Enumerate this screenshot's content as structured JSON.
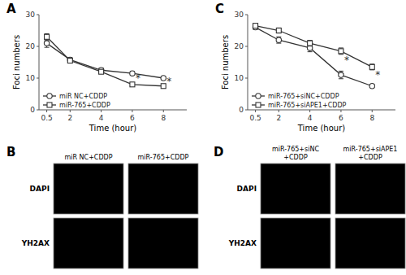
{
  "chart_data": [
    {
      "type": "line",
      "title": "A",
      "x_label": "Time (hour)",
      "y_label": "Foci numbers",
      "x": [
        0.5,
        2,
        4,
        6,
        8
      ],
      "series": [
        {
          "name": "miR NC+CDDP",
          "color": "#333333",
          "marker": "circle",
          "values": [
            21.0,
            15.8,
            12.5,
            11.5,
            10.0
          ],
          "errors": [
            1.3,
            0.7,
            0.7,
            0.6,
            0.5
          ]
        },
        {
          "name": "miR-765+CDDP",
          "color": "#333333",
          "marker": "square",
          "values": [
            23.0,
            15.5,
            12.0,
            8.0,
            7.5
          ],
          "errors": [
            1.0,
            0.6,
            0.5,
            0.4,
            0.4
          ]
        }
      ],
      "annotations": [
        {
          "text": "*",
          "x": 6,
          "y": 10.25
        },
        {
          "text": "*",
          "x": 8,
          "y": 9.2
        }
      ],
      "xlim": [
        0,
        9.5
      ],
      "xticks": [
        0.5,
        2,
        4,
        6,
        8
      ],
      "ylim": [
        0,
        30
      ],
      "yticks": [
        0,
        10,
        20,
        30
      ],
      "grid": false,
      "legend": "lower left"
    },
    {
      "type": "line",
      "title": "C",
      "x_label": "Time (hour)",
      "y_label": "Foci numbers",
      "x": [
        0.5,
        2,
        4,
        6,
        8
      ],
      "series": [
        {
          "name": "miR-765+siNC+CDDP",
          "color": "#333333",
          "marker": "circle",
          "values": [
            26.0,
            22.0,
            19.5,
            11.0,
            7.5
          ],
          "errors": [
            0.7,
            1.0,
            1.2,
            1.2,
            0.5
          ]
        },
        {
          "name": "miR-765+siAPE1+CDDP",
          "color": "#333333",
          "marker": "square",
          "values": [
            26.5,
            25.0,
            21.0,
            18.5,
            13.5
          ],
          "errors": [
            0.6,
            0.8,
            0.9,
            1.0,
            0.9
          ]
        }
      ],
      "annotations": [
        {
          "text": "*",
          "x": 6,
          "y": 16.0
        },
        {
          "text": "*",
          "x": 8,
          "y": 11.4
        }
      ],
      "xlim": [
        0,
        9.5
      ],
      "xticks": [
        0.5,
        2,
        4,
        6,
        8
      ],
      "ylim": [
        0,
        30
      ],
      "yticks": [
        0,
        10,
        20,
        30
      ],
      "grid": false,
      "legend": "lower left"
    },
    {
      "type": "image_grid",
      "title": "B",
      "categories": [
        "miR NC+CDDP",
        "miR-765+CDDP"
      ],
      "annotations": [
        "DAPI",
        "YH2AX"
      ]
    },
    {
      "type": "image_grid",
      "title": "D",
      "categories": [
        "miR-765+siNC\n+CDDP",
        "miR-765+siAPE1\n+CDDP"
      ],
      "annotations": [
        "DAPI",
        "YH2AX"
      ]
    }
  ]
}
